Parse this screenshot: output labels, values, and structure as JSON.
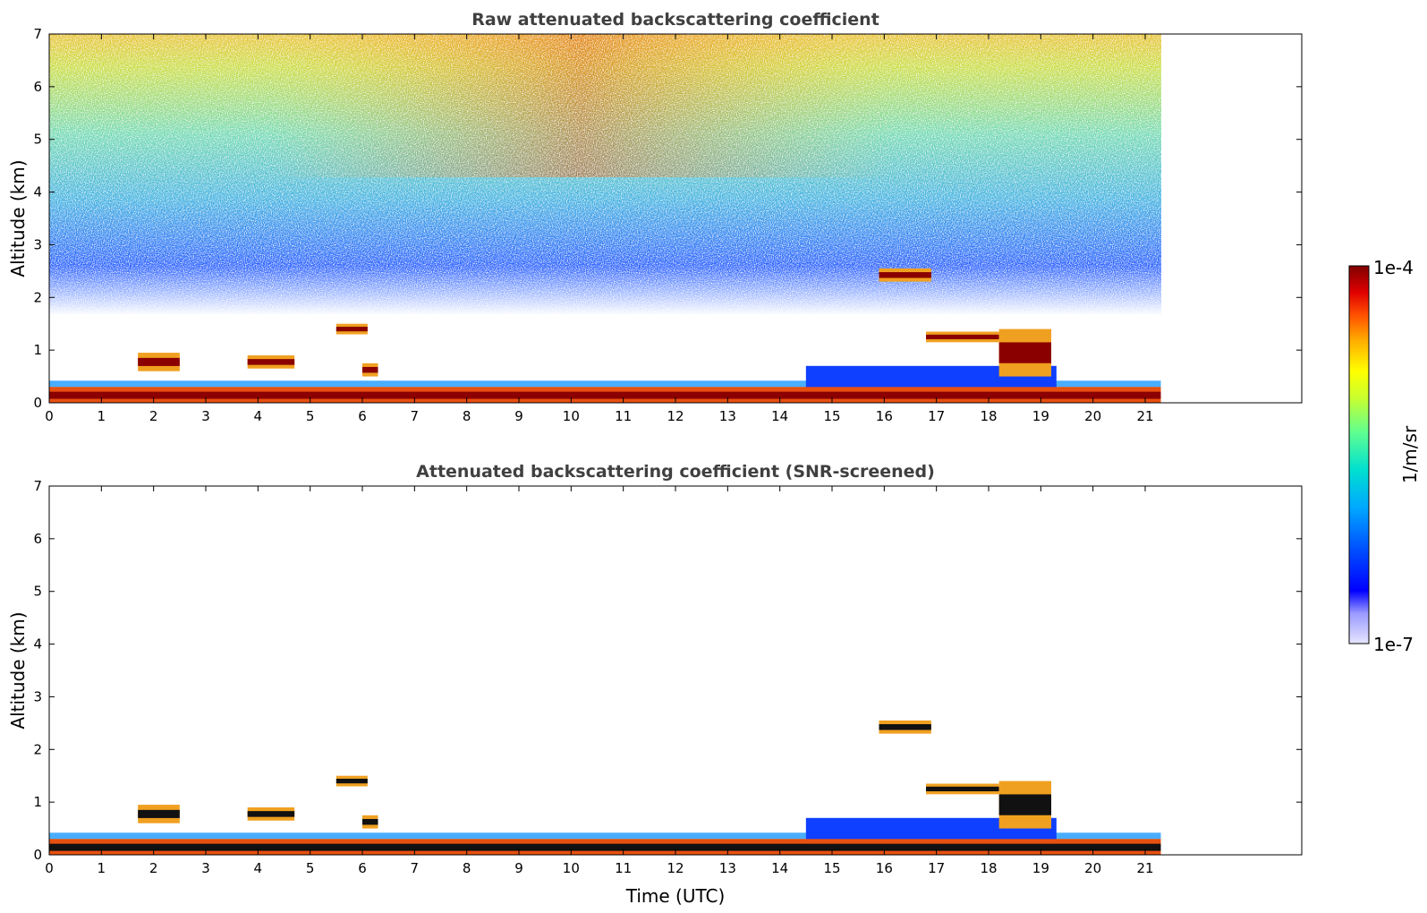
{
  "chart_data": [
    {
      "type": "heatmap",
      "title": "Raw attenuated backscattering coefficient",
      "xlabel": "",
      "ylabel": "Altitude (km)",
      "xlim": [
        0,
        24
      ],
      "ylim": [
        0,
        7
      ],
      "x_ticks": [
        0,
        1,
        2,
        3,
        4,
        5,
        6,
        7,
        8,
        9,
        10,
        11,
        12,
        13,
        14,
        15,
        16,
        17,
        18,
        19,
        20,
        21
      ],
      "y_ticks": [
        0,
        1,
        2,
        3,
        4,
        5,
        6,
        7
      ],
      "data_end_hour": 21.3,
      "features": [
        {
          "name": "surface layer",
          "t_start": 0,
          "t_end": 21.3,
          "alt_km": [
            0,
            0.3
          ],
          "level": "high"
        },
        {
          "name": "boundary layer",
          "t_start": 14.5,
          "t_end": 19.3,
          "alt_km": [
            0,
            0.7
          ],
          "level": "low"
        },
        {
          "name": "cloud",
          "t_start": 1.7,
          "t_end": 2.5,
          "alt_km": [
            0.6,
            0.95
          ],
          "level": "high"
        },
        {
          "name": "cloud",
          "t_start": 3.8,
          "t_end": 4.7,
          "alt_km": [
            0.65,
            0.9
          ],
          "level": "high"
        },
        {
          "name": "cloud",
          "t_start": 5.5,
          "t_end": 6.1,
          "alt_km": [
            1.3,
            1.5
          ],
          "level": "high"
        },
        {
          "name": "cloud",
          "t_start": 6.0,
          "t_end": 6.3,
          "alt_km": [
            0.5,
            0.75
          ],
          "level": "high"
        },
        {
          "name": "cloud",
          "t_start": 15.9,
          "t_end": 16.9,
          "alt_km": [
            2.3,
            2.55
          ],
          "level": "high"
        },
        {
          "name": "cloud",
          "t_start": 16.8,
          "t_end": 18.2,
          "alt_km": [
            1.15,
            1.35
          ],
          "level": "high"
        },
        {
          "name": "cloud",
          "t_start": 18.2,
          "t_end": 19.2,
          "alt_km": [
            0.5,
            1.4
          ],
          "level": "high"
        }
      ]
    },
    {
      "type": "heatmap",
      "title": "Attenuated backscattering coefficient (SNR-screened)",
      "xlabel": "Time (UTC)",
      "ylabel": "Altitude (km)",
      "xlim": [
        0,
        24
      ],
      "ylim": [
        0,
        7
      ],
      "x_ticks": [
        0,
        1,
        2,
        3,
        4,
        5,
        6,
        7,
        8,
        9,
        10,
        11,
        12,
        13,
        14,
        15,
        16,
        17,
        18,
        19,
        20,
        21
      ],
      "y_ticks": [
        0,
        1,
        2,
        3,
        4,
        5,
        6,
        7
      ],
      "data_end_hour": 21.3
    }
  ],
  "colorbar": {
    "label": "1/m/sr",
    "min_label": "1e-7",
    "max_label": "1e-4",
    "colors": [
      "#e6e6ff",
      "#9a9aff",
      "#0000ff",
      "#0050ff",
      "#00a8ff",
      "#00e0d0",
      "#60ff90",
      "#c8ff30",
      "#ffff00",
      "#ffb000",
      "#ff5000",
      "#e00000",
      "#800000"
    ]
  }
}
